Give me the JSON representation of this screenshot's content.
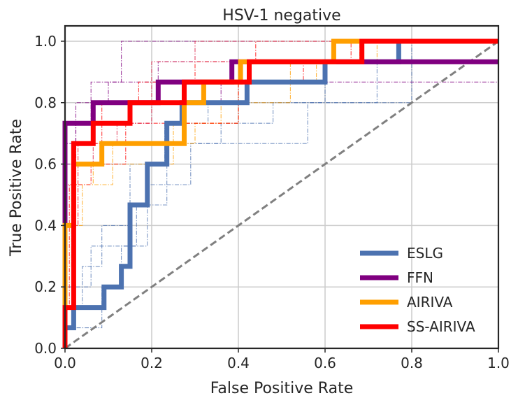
{
  "chart_data": {
    "type": "line",
    "title": "HSV-1 negative",
    "xlabel": "False Positive Rate",
    "ylabel": "True Positive Rate",
    "xlim": [
      0.0,
      1.0
    ],
    "ylim": [
      0.0,
      1.05
    ],
    "xticks": [
      "0.0",
      "0.2",
      "0.4",
      "0.6",
      "0.8",
      "1.0"
    ],
    "yticks": [
      "0.0",
      "0.2",
      "0.4",
      "0.6",
      "0.8",
      "1.0"
    ],
    "grid": true,
    "legend_position": "bottom-right",
    "series": [
      {
        "name": "ESLG",
        "color": "#4c72b0",
        "x": [
          0.0,
          0.0,
          0.02,
          0.02,
          0.09,
          0.09,
          0.13,
          0.13,
          0.15,
          0.15,
          0.19,
          0.19,
          0.235,
          0.235,
          0.27,
          0.27,
          0.42,
          0.42,
          0.6,
          0.6,
          0.77,
          0.77,
          1.0
        ],
        "y": [
          0.0,
          0.067,
          0.067,
          0.133,
          0.133,
          0.2,
          0.2,
          0.267,
          0.267,
          0.467,
          0.467,
          0.6,
          0.6,
          0.733,
          0.733,
          0.8,
          0.8,
          0.867,
          0.867,
          0.933,
          0.933,
          1.0,
          1.0
        ]
      },
      {
        "name": "FFN",
        "color": "#800080",
        "x": [
          0.0,
          0.0,
          0.02,
          0.02,
          0.065,
          0.065,
          0.14,
          0.14,
          0.215,
          0.215,
          0.385,
          0.385,
          1.0
        ],
        "y": [
          0.0,
          0.733,
          0.733,
          0.733,
          0.733,
          0.8,
          0.8,
          0.8,
          0.8,
          0.867,
          0.867,
          0.933,
          0.933
        ]
      },
      {
        "name": "AIRIVA",
        "color": "#ff9f00",
        "x": [
          0.0,
          0.0,
          0.01,
          0.01,
          0.02,
          0.02,
          0.085,
          0.085,
          0.275,
          0.275,
          0.32,
          0.32,
          0.405,
          0.405,
          0.62,
          0.62,
          1.0
        ],
        "y": [
          0.0,
          0.4,
          0.4,
          0.4,
          0.4,
          0.6,
          0.6,
          0.667,
          0.667,
          0.8,
          0.8,
          0.867,
          0.867,
          0.933,
          0.933,
          1.0,
          1.0
        ]
      },
      {
        "name": "SS-AIRIVA",
        "color": "#ff0000",
        "x": [
          0.0,
          0.0,
          0.02,
          0.02,
          0.065,
          0.065,
          0.15,
          0.15,
          0.275,
          0.275,
          0.425,
          0.425,
          0.685,
          0.685,
          1.0
        ],
        "y": [
          0.0,
          0.133,
          0.133,
          0.667,
          0.667,
          0.733,
          0.733,
          0.8,
          0.8,
          0.867,
          0.867,
          0.933,
          0.933,
          1.0,
          1.0
        ]
      }
    ],
    "chance_line": {
      "x": [
        0.0,
        1.0
      ],
      "y": [
        0.0,
        1.0
      ],
      "color": "#808080"
    },
    "fold_curves": [
      {
        "color": "#4c72b0",
        "x": [
          0.0,
          0.0,
          0.04,
          0.04,
          0.085,
          0.085,
          0.15,
          0.15,
          0.23,
          0.23,
          0.33,
          0.33,
          0.8,
          0.8,
          1.0
        ],
        "y": [
          0.0,
          0.133,
          0.133,
          0.267,
          0.267,
          0.4,
          0.4,
          0.6,
          0.6,
          0.733,
          0.733,
          0.8,
          0.8,
          1.0,
          1.0
        ]
      },
      {
        "color": "#4c72b0",
        "x": [
          0.0,
          0.0,
          0.085,
          0.085,
          0.13,
          0.13,
          0.19,
          0.19,
          0.29,
          0.29,
          0.56,
          0.56,
          0.72,
          0.72,
          1.0
        ],
        "y": [
          0.0,
          0.067,
          0.067,
          0.2,
          0.2,
          0.333,
          0.333,
          0.533,
          0.533,
          0.667,
          0.667,
          0.8,
          0.8,
          0.933,
          0.933
        ]
      },
      {
        "color": "#4c72b0",
        "x": [
          0.0,
          0.0,
          0.06,
          0.06,
          0.165,
          0.165,
          0.235,
          0.235,
          0.36,
          0.36,
          0.48,
          0.48,
          0.6,
          0.6,
          1.0
        ],
        "y": [
          0.0,
          0.2,
          0.2,
          0.333,
          0.333,
          0.467,
          0.467,
          0.667,
          0.667,
          0.733,
          0.733,
          0.8,
          0.8,
          0.933,
          0.933
        ]
      },
      {
        "color": "#800080",
        "x": [
          0.0,
          0.0,
          0.06,
          0.06,
          0.13,
          0.13,
          0.245,
          0.245,
          0.46,
          0.46,
          1.0
        ],
        "y": [
          0.0,
          0.733,
          0.733,
          0.867,
          0.867,
          1.0,
          1.0,
          1.0,
          1.0,
          1.0,
          1.0
        ]
      },
      {
        "color": "#800080",
        "x": [
          0.0,
          0.0,
          0.025,
          0.025,
          0.1,
          0.1,
          0.215,
          0.215,
          0.43,
          0.43,
          1.0
        ],
        "y": [
          0.0,
          0.667,
          0.667,
          0.8,
          0.8,
          0.867,
          0.867,
          0.933,
          0.933,
          0.933,
          0.933
        ]
      },
      {
        "color": "#800080",
        "x": [
          0.0,
          0.0,
          0.025,
          0.025,
          0.15,
          0.15,
          0.36,
          0.36,
          0.55,
          0.55,
          1.0
        ],
        "y": [
          0.0,
          0.6,
          0.6,
          0.733,
          0.733,
          0.8,
          0.8,
          0.867,
          0.867,
          0.867,
          0.867
        ]
      },
      {
        "color": "#ff9f00",
        "x": [
          0.0,
          0.0,
          0.015,
          0.015,
          0.065,
          0.065,
          0.25,
          0.25,
          0.36,
          0.36,
          0.52,
          0.52,
          0.68,
          0.68,
          1.0
        ],
        "y": [
          0.0,
          0.267,
          0.267,
          0.533,
          0.533,
          0.6,
          0.6,
          0.733,
          0.733,
          0.8,
          0.8,
          0.933,
          0.933,
          1.0,
          1.0
        ]
      },
      {
        "color": "#ff9f00",
        "x": [
          0.0,
          0.0,
          0.04,
          0.04,
          0.11,
          0.11,
          0.3,
          0.3,
          0.4,
          0.4,
          0.58,
          0.58,
          0.72,
          0.72,
          1.0
        ],
        "y": [
          0.0,
          0.4,
          0.4,
          0.533,
          0.533,
          0.667,
          0.667,
          0.733,
          0.733,
          0.867,
          0.867,
          0.933,
          0.933,
          1.0,
          1.0
        ]
      },
      {
        "color": "#ff0000",
        "x": [
          0.0,
          0.0,
          0.01,
          0.01,
          0.06,
          0.06,
          0.14,
          0.14,
          0.4,
          0.4,
          0.55,
          0.55,
          0.66,
          0.66,
          1.0
        ],
        "y": [
          0.0,
          0.133,
          0.133,
          0.533,
          0.533,
          0.6,
          0.6,
          0.733,
          0.733,
          0.867,
          0.867,
          0.933,
          0.933,
          1.0,
          1.0
        ]
      },
      {
        "color": "#ff0000",
        "x": [
          0.0,
          0.0,
          0.03,
          0.03,
          0.085,
          0.085,
          0.17,
          0.17,
          0.3,
          0.3,
          0.44,
          0.44,
          0.61,
          0.61,
          1.0
        ],
        "y": [
          0.0,
          0.4,
          0.4,
          0.667,
          0.667,
          0.8,
          0.8,
          0.867,
          0.867,
          0.933,
          0.933,
          1.0,
          1.0,
          1.0,
          1.0
        ]
      },
      {
        "color": "#dc143c",
        "x": [
          0.0,
          0.0,
          0.025,
          0.025,
          0.065,
          0.065,
          0.12,
          0.12,
          0.2,
          0.2,
          0.3,
          0.3,
          1.0
        ],
        "y": [
          0.0,
          0.533,
          0.533,
          0.6,
          0.6,
          0.667,
          0.667,
          0.733,
          0.733,
          0.933,
          0.933,
          1.0,
          1.0
        ]
      }
    ]
  }
}
